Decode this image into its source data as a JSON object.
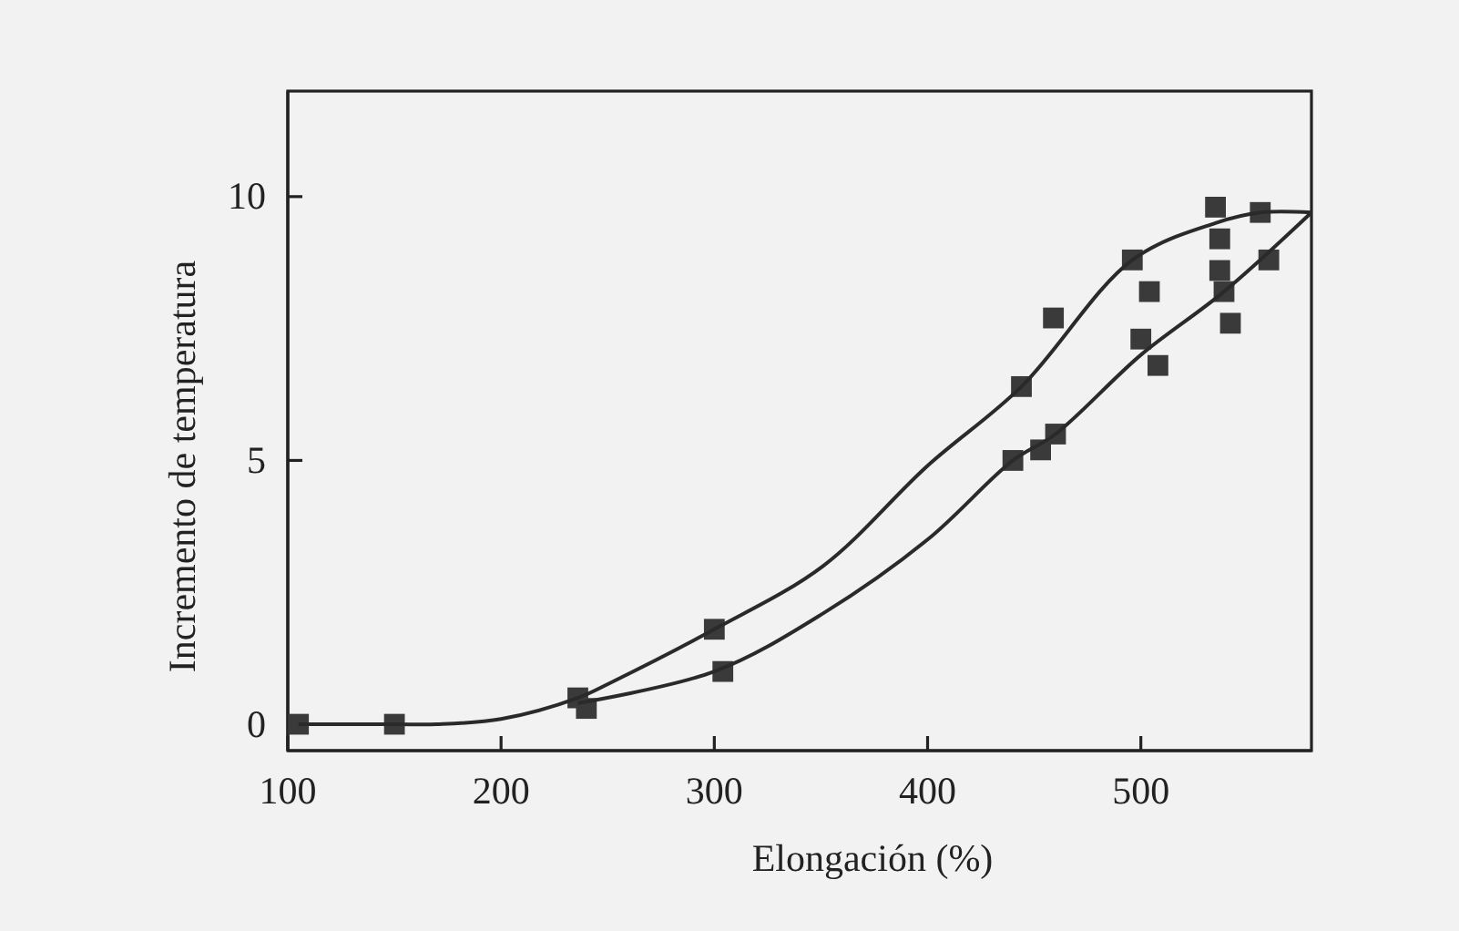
{
  "chart_data": {
    "type": "scatter",
    "xlabel": "Elongación (%)",
    "ylabel": "Incremento de temperatura",
    "xlim": [
      100,
      580
    ],
    "ylim": [
      -0.5,
      12
    ],
    "xticks": [
      100,
      200,
      300,
      400,
      500
    ],
    "yticks": [
      0,
      5,
      10
    ],
    "grid": false,
    "series": [
      {
        "marker": "square",
        "color": "#3a3a3a",
        "x": [
          105,
          150,
          236,
          240,
          300,
          304,
          440,
          444,
          453,
          459,
          460,
          496,
          500,
          504,
          508,
          535,
          537,
          537,
          539,
          542,
          556,
          560
        ],
        "values": [
          0,
          0,
          0.5,
          0.3,
          1.8,
          1.0,
          5.0,
          6.4,
          5.2,
          7.7,
          5.5,
          8.8,
          7.3,
          8.2,
          6.8,
          9.8,
          9.2,
          8.6,
          8.2,
          7.6,
          9.7,
          8.8
        ]
      },
      {
        "type": "line",
        "marker": "none",
        "line_style": "solid",
        "color": "#2a2a2a",
        "x": [
          105,
          150,
          170,
          200,
          236,
          252,
          300,
          351,
          400,
          444,
          496,
          535,
          556,
          580
        ],
        "values": [
          0,
          0,
          0,
          0.1,
          0.5,
          0.8,
          1.8,
          3.0,
          4.9,
          6.4,
          8.8,
          9.5,
          9.7,
          9.7
        ]
      },
      {
        "type": "line",
        "marker": "none",
        "line_style": "solid",
        "color": "#2a2a2a",
        "x": [
          236,
          300,
          351,
          400,
          440,
          460,
          500,
          539,
          580
        ],
        "values": [
          0.4,
          1.0,
          2.1,
          3.5,
          5.0,
          5.5,
          7.0,
          8.2,
          9.7
        ]
      }
    ]
  }
}
